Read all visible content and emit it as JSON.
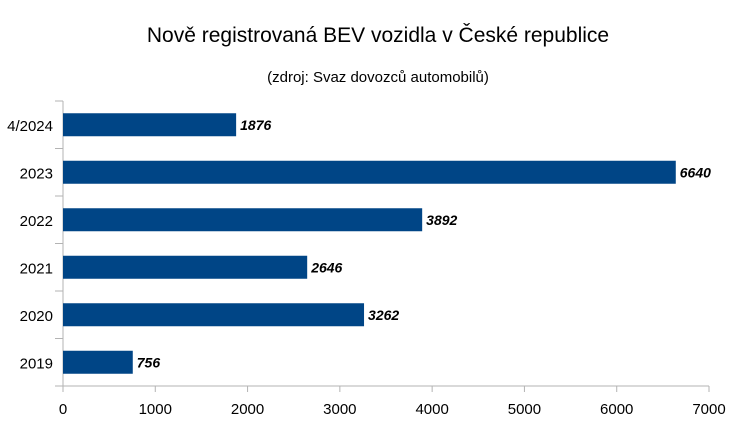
{
  "chart_data": {
    "type": "bar",
    "orientation": "horizontal",
    "title": "Nově registrovaná BEV vozidla v České republice",
    "subtitle": "(zdroj: Svaz dovozců automobilů)",
    "categories": [
      "4/2024",
      "2023",
      "2022",
      "2021",
      "2020",
      "2019"
    ],
    "values": [
      1876,
      6640,
      3892,
      2646,
      3262,
      756
    ],
    "xlabel": "",
    "ylabel": "",
    "xlim": [
      0,
      7000
    ],
    "xticks": [
      "0",
      "1000",
      "2000",
      "3000",
      "4000",
      "5000",
      "6000",
      "7000"
    ],
    "grid": false,
    "legend": "none",
    "bar_color": "#004586"
  }
}
